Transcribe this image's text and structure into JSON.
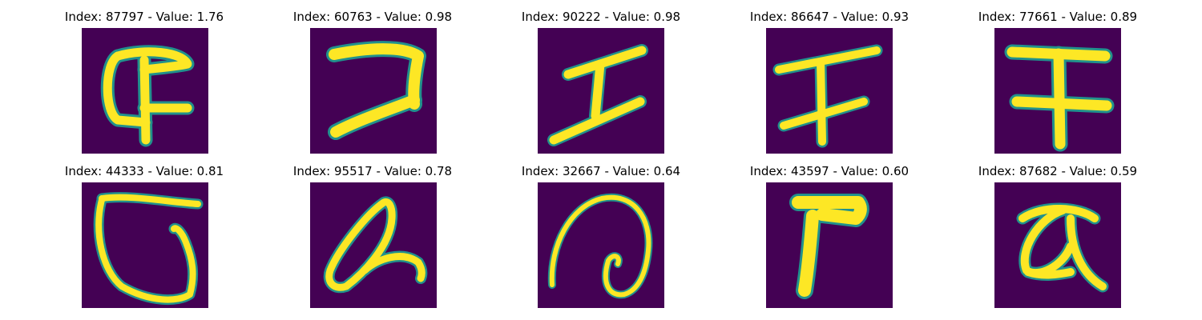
{
  "colors": {
    "background": "#440154",
    "stroke": "#fde725",
    "edge": "#21918c"
  },
  "panels": [
    {
      "title": "Index: 87797 - Value: 1.76",
      "glyph": "glyph-87797"
    },
    {
      "title": "Index: 60763 - Value: 0.98",
      "glyph": "glyph-60763"
    },
    {
      "title": "Index: 90222 - Value: 0.98",
      "glyph": "glyph-90222"
    },
    {
      "title": "Index: 86647 - Value: 0.93",
      "glyph": "glyph-86647"
    },
    {
      "title": "Index: 77661 - Value: 0.89",
      "glyph": "glyph-77661"
    },
    {
      "title": "Index: 44333 - Value: 0.81",
      "glyph": "glyph-44333"
    },
    {
      "title": "Index: 95517 - Value: 0.78",
      "glyph": "glyph-95517"
    },
    {
      "title": "Index: 32667 - Value: 0.64",
      "glyph": "glyph-32667"
    },
    {
      "title": "Index: 43597 - Value: 0.60",
      "glyph": "glyph-43597"
    },
    {
      "title": "Index: 87682 - Value: 0.59",
      "glyph": "glyph-87682"
    }
  ]
}
